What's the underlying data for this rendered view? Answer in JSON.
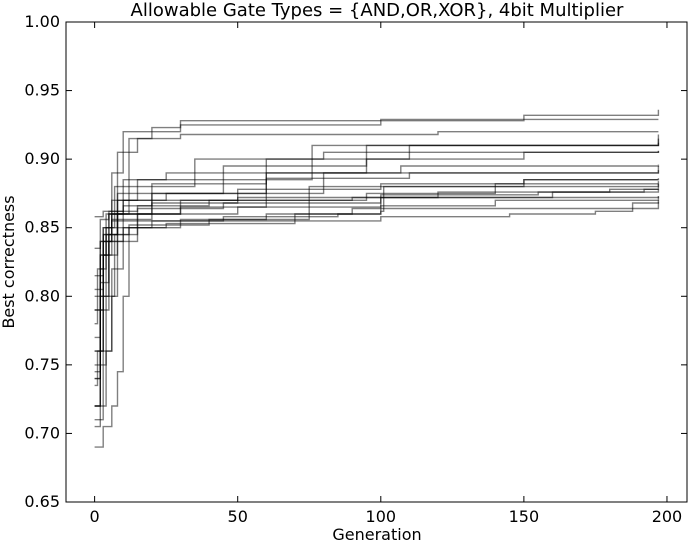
{
  "chart_data": {
    "type": "line",
    "title": "Allowable Gate Types = {AND,OR,XOR}, 4bit Multiplier",
    "xlabel": "Generation",
    "ylabel": "Best correctness",
    "xlim": [
      -10,
      207
    ],
    "ylim": [
      0.65,
      1.0
    ],
    "xticks": [
      0,
      50,
      100,
      150,
      200
    ],
    "yticks": [
      0.65,
      0.7,
      0.75,
      0.8,
      0.85,
      0.9,
      0.95,
      1.0
    ],
    "xtick_labels": [
      "0",
      "50",
      "100",
      "150",
      "200"
    ],
    "ytick_labels": [
      "0.65",
      "0.70",
      "0.75",
      "0.80",
      "0.85",
      "0.90",
      "0.95",
      "1.00"
    ],
    "grid": false,
    "line_color": "#000000",
    "line_opacity": 0.5,
    "series": [
      {
        "points": [
          [
            0,
            0.74
          ],
          [
            2,
            0.82
          ],
          [
            4,
            0.85
          ],
          [
            7,
            0.88
          ],
          [
            12,
            0.915
          ],
          [
            20,
            0.923
          ],
          [
            30,
            0.928
          ],
          [
            100,
            0.929
          ],
          [
            197,
            0.929
          ]
        ]
      },
      {
        "points": [
          [
            0,
            0.72
          ],
          [
            2,
            0.83
          ],
          [
            5,
            0.86
          ],
          [
            10,
            0.885
          ],
          [
            25,
            0.89
          ],
          [
            60,
            0.9
          ],
          [
            110,
            0.91
          ],
          [
            197,
            0.918
          ]
        ]
      },
      {
        "points": [
          [
            0,
            0.76
          ],
          [
            3,
            0.83
          ],
          [
            8,
            0.905
          ],
          [
            15,
            0.915
          ],
          [
            30,
            0.918
          ],
          [
            120,
            0.92
          ],
          [
            197,
            0.92
          ]
        ]
      },
      {
        "points": [
          [
            0,
            0.78
          ],
          [
            1,
            0.82
          ],
          [
            3,
            0.845
          ],
          [
            6,
            0.855
          ],
          [
            40,
            0.856
          ],
          [
            75,
            0.88
          ],
          [
            197,
            0.884
          ]
        ]
      },
      {
        "points": [
          [
            0,
            0.705
          ],
          [
            2,
            0.72
          ],
          [
            4,
            0.76
          ],
          [
            6,
            0.8
          ],
          [
            8,
            0.84
          ],
          [
            12,
            0.85
          ],
          [
            25,
            0.853
          ],
          [
            70,
            0.86
          ],
          [
            100,
            0.866
          ],
          [
            140,
            0.87
          ],
          [
            197,
            0.873
          ]
        ]
      },
      {
        "points": [
          [
            0,
            0.69
          ],
          [
            3,
            0.705
          ],
          [
            6,
            0.72
          ],
          [
            8,
            0.745
          ],
          [
            10,
            0.8
          ],
          [
            12,
            0.84
          ],
          [
            15,
            0.86
          ],
          [
            30,
            0.87
          ],
          [
            60,
            0.89
          ],
          [
            197,
            0.895
          ]
        ]
      },
      {
        "points": [
          [
            0,
            0.79
          ],
          [
            3,
            0.84
          ],
          [
            8,
            0.87
          ],
          [
            20,
            0.875
          ],
          [
            45,
            0.885
          ],
          [
            76,
            0.91
          ],
          [
            197,
            0.915
          ]
        ]
      },
      {
        "points": [
          [
            0,
            0.835
          ],
          [
            2,
            0.856
          ],
          [
            5,
            0.862
          ],
          [
            15,
            0.864
          ],
          [
            45,
            0.868
          ],
          [
            100,
            0.874
          ],
          [
            155,
            0.876
          ],
          [
            192,
            0.878
          ],
          [
            197,
            0.882
          ]
        ]
      },
      {
        "points": [
          [
            0,
            0.858
          ],
          [
            3,
            0.862
          ],
          [
            10,
            0.866
          ],
          [
            20,
            0.868
          ],
          [
            50,
            0.872
          ],
          [
            120,
            0.876
          ],
          [
            180,
            0.878
          ],
          [
            197,
            0.878
          ]
        ]
      },
      {
        "points": [
          [
            0,
            0.75
          ],
          [
            2,
            0.81
          ],
          [
            5,
            0.85
          ],
          [
            15,
            0.86
          ],
          [
            30,
            0.865
          ],
          [
            60,
            0.87
          ],
          [
            95,
            0.875
          ],
          [
            140,
            0.882
          ],
          [
            197,
            0.882
          ]
        ]
      },
      {
        "points": [
          [
            0,
            0.77
          ],
          [
            2,
            0.84
          ],
          [
            6,
            0.856
          ],
          [
            20,
            0.86
          ],
          [
            50,
            0.865
          ],
          [
            100,
            0.872
          ],
          [
            160,
            0.876
          ],
          [
            197,
            0.878
          ]
        ]
      },
      {
        "points": [
          [
            0,
            0.71
          ],
          [
            3,
            0.76
          ],
          [
            6,
            0.82
          ],
          [
            10,
            0.86
          ],
          [
            20,
            0.87
          ],
          [
            50,
            0.878
          ],
          [
            100,
            0.882
          ],
          [
            150,
            0.885
          ],
          [
            197,
            0.886
          ]
        ]
      },
      {
        "points": [
          [
            0,
            0.815
          ],
          [
            3,
            0.845
          ],
          [
            8,
            0.875
          ],
          [
            20,
            0.882
          ],
          [
            60,
            0.886
          ],
          [
            110,
            0.89
          ],
          [
            197,
            0.892
          ]
        ]
      },
      {
        "points": [
          [
            0,
            0.74
          ],
          [
            2,
            0.8
          ],
          [
            5,
            0.845
          ],
          [
            12,
            0.852
          ],
          [
            40,
            0.855
          ],
          [
            100,
            0.858
          ],
          [
            145,
            0.86
          ],
          [
            175,
            0.862
          ],
          [
            188,
            0.868
          ],
          [
            197,
            0.869
          ]
        ]
      },
      {
        "points": [
          [
            0,
            0.72
          ],
          [
            2,
            0.79
          ],
          [
            5,
            0.84
          ],
          [
            10,
            0.85
          ],
          [
            20,
            0.855
          ],
          [
            45,
            0.858
          ],
          [
            85,
            0.86
          ],
          [
            100,
            0.862
          ],
          [
            101,
            0.88
          ],
          [
            150,
            0.885
          ],
          [
            197,
            0.885
          ]
        ]
      },
      {
        "points": [
          [
            0,
            0.745
          ],
          [
            2,
            0.8
          ],
          [
            4,
            0.845
          ],
          [
            8,
            0.86
          ],
          [
            15,
            0.866
          ],
          [
            40,
            0.87
          ],
          [
            90,
            0.872
          ],
          [
            197,
            0.873
          ]
        ]
      },
      {
        "points": [
          [
            0,
            0.735
          ],
          [
            1,
            0.76
          ],
          [
            3,
            0.83
          ],
          [
            6,
            0.86
          ],
          [
            20,
            0.875
          ],
          [
            60,
            0.89
          ],
          [
            95,
            0.91
          ],
          [
            197,
            0.912
          ]
        ]
      },
      {
        "points": [
          [
            0,
            0.805
          ],
          [
            3,
            0.85
          ],
          [
            5,
            0.86
          ],
          [
            12,
            0.88
          ],
          [
            35,
            0.9
          ],
          [
            80,
            0.905
          ],
          [
            197,
            0.906
          ]
        ]
      },
      {
        "points": [
          [
            0,
            0.8
          ],
          [
            2,
            0.83
          ],
          [
            4,
            0.86
          ],
          [
            10,
            0.87
          ],
          [
            25,
            0.875
          ],
          [
            80,
            0.89
          ],
          [
            107,
            0.895
          ],
          [
            197,
            0.896
          ]
        ]
      },
      {
        "points": [
          [
            0,
            0.72
          ],
          [
            2,
            0.75
          ],
          [
            4,
            0.8
          ],
          [
            7,
            0.845
          ],
          [
            15,
            0.85
          ],
          [
            30,
            0.856
          ],
          [
            60,
            0.86
          ],
          [
            90,
            0.864
          ],
          [
            197,
            0.87
          ]
        ]
      },
      {
        "points": [
          [
            0,
            0.76
          ],
          [
            3,
            0.85
          ],
          [
            6,
            0.89
          ],
          [
            10,
            0.92
          ],
          [
            30,
            0.925
          ],
          [
            100,
            0.928
          ],
          [
            150,
            0.932
          ],
          [
            197,
            0.936
          ]
        ]
      },
      {
        "points": [
          [
            0,
            0.79
          ],
          [
            2,
            0.84
          ],
          [
            6,
            0.87
          ],
          [
            15,
            0.885
          ],
          [
            45,
            0.895
          ],
          [
            95,
            0.9
          ],
          [
            150,
            0.905
          ],
          [
            197,
            0.906
          ]
        ]
      }
    ]
  }
}
